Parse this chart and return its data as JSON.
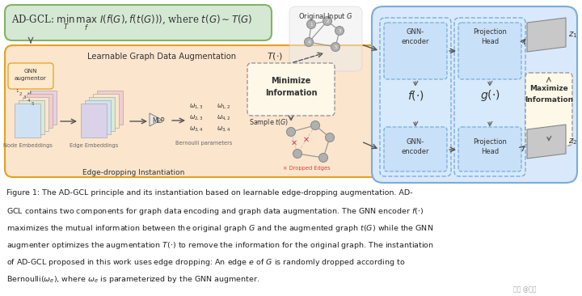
{
  "bg_color": "#ffffff",
  "fig_width": 7.2,
  "fig_height": 3.66,
  "formula_box_color": "#d5e8d4",
  "formula_box_edge": "#82b366",
  "outer_orange_color": "#fce5cd",
  "outer_orange_edge": "#e6a020",
  "blue_panel_color": "#dae8fc",
  "blue_panel_edge": "#7aacda",
  "gnn_box_color": "#e8f4ff",
  "gnn_box_edge": "#7aacda",
  "minimize_box_color": "#fdf8e8",
  "minimize_box_edge": "#aaaaaa",
  "maximize_box_color": "#fdf8e8",
  "maximize_box_edge": "#aaaaaa",
  "node_colors_1": [
    "#cfe2f3",
    "#d9ead3",
    "#fce5cd",
    "#f4cccc",
    "#ead1dc"
  ],
  "node_colors_2": [
    "#d9d2e9",
    "#cfe2f3",
    "#d9ead3",
    "#fce5cd",
    "#f4cccc"
  ],
  "graph_node_color": "#b0b0b0",
  "graph_node_edge": "#888888",
  "graph_edge_color": "#888888",
  "dropped_color": "#cc4444",
  "arrow_color": "#555555",
  "text_dark": "#333333",
  "text_gray": "#666666",
  "watermark": "#aaaaaa",
  "caption_lines": [
    "Figure 1: The AD-GCL principle and its instantiation based on learnable edge-dropping augmentation. AD-",
    "GCL contains two components for graph data encoding and graph data augmentation. The GNN encoder f(·)",
    "maximizes the mutual information between the original graph G and the augmented graph t(G) while the GNN",
    "augmenter optimizes the augmentation T(·) to remove the information for the original graph. The instantiation",
    "of AD-GCL proposed in this work uses edge dropping: An edge e of G is randomly dropped according to",
    "Bernoulli(ω_e), where ω_e is parameterized by the GNN augmenter."
  ]
}
